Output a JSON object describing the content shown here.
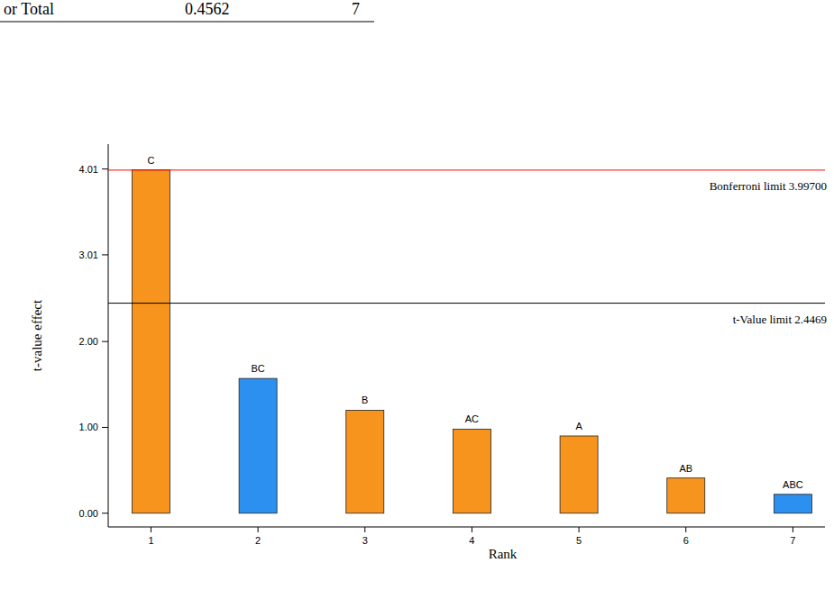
{
  "chart_data": {
    "type": "bar",
    "annotations": [
      "or Total",
      "0.4562",
      "7"
    ],
    "x": [
      1,
      2,
      3,
      4,
      5,
      6,
      7
    ],
    "terms": [
      "C",
      "BC",
      "B",
      "AC",
      "A",
      "AB",
      "ABC"
    ],
    "values": [
      4.0,
      1.57,
      1.2,
      0.98,
      0.9,
      0.41,
      0.22
    ],
    "colors": [
      "#f7941e",
      "#2b90f0",
      "#f7941e",
      "#f7941e",
      "#f7941e",
      "#f7941e",
      "#2b90f0"
    ],
    "xlim": [
      0.6,
      7.3
    ],
    "xticks": [
      1,
      2,
      3,
      4,
      5,
      6,
      7
    ],
    "ylim": [
      -0.16,
      4.3
    ],
    "yticks": [
      {
        "value": 0,
        "label": "0.00"
      },
      {
        "value": 1,
        "label": "1.00"
      },
      {
        "value": 2,
        "label": "2.00"
      },
      {
        "value": 3.01,
        "label": "3.01"
      },
      {
        "value": 4.01,
        "label": "4.01"
      }
    ],
    "x_label": "Rank",
    "y_label": "t-value effect",
    "reference_lines": [
      {
        "value": 3.997,
        "label": "Bonferroni limit 3.99700",
        "color": "#ff0000"
      },
      {
        "value": 2.4469,
        "label": "t-Value limit 2.4469",
        "color": "#000000"
      }
    ],
    "grid": false
  }
}
